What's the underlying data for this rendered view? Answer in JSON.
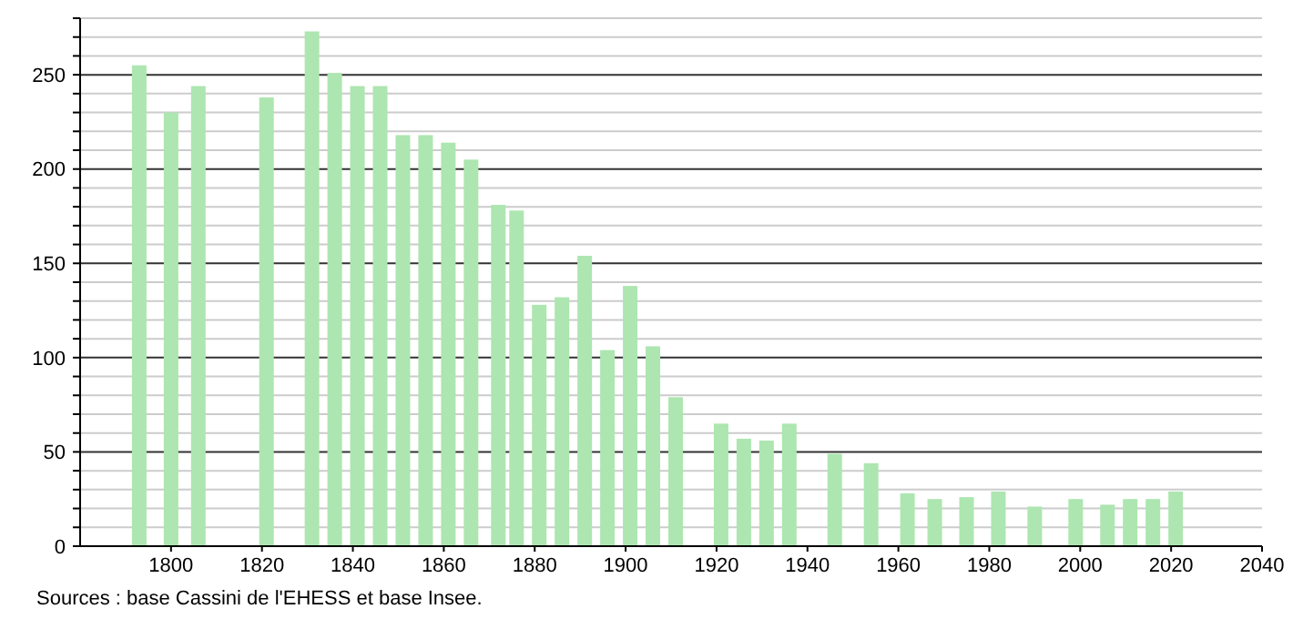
{
  "chart_data": {
    "type": "bar",
    "x": [
      1793,
      1800,
      1806,
      1821,
      1831,
      1836,
      1841,
      1846,
      1851,
      1856,
      1861,
      1866,
      1872,
      1876,
      1881,
      1886,
      1891,
      1896,
      1901,
      1906,
      1911,
      1921,
      1926,
      1931,
      1936,
      1946,
      1954,
      1962,
      1968,
      1975,
      1982,
      1990,
      1999,
      2006,
      2011,
      2016,
      2021
    ],
    "values": [
      255,
      230,
      244,
      238,
      273,
      251,
      244,
      244,
      218,
      218,
      214,
      205,
      181,
      178,
      128,
      132,
      154,
      104,
      138,
      106,
      79,
      65,
      57,
      56,
      65,
      49,
      44,
      28,
      25,
      26,
      29,
      21,
      25,
      22,
      25,
      25,
      29
    ],
    "color": "#ade6b0",
    "xlim": [
      1780,
      2040
    ],
    "xticks": [
      1800,
      1820,
      1840,
      1860,
      1880,
      1900,
      1920,
      1940,
      1960,
      1980,
      2000,
      2020,
      2040
    ],
    "ylim": [
      0,
      280
    ],
    "yticks": [
      0,
      {
        "value": 10,
        "label": null
      },
      {
        "value": 20,
        "label": null
      },
      {
        "value": 30,
        "label": null
      },
      {
        "value": 40,
        "label": null
      },
      50,
      {
        "value": 60,
        "label": null
      },
      {
        "value": 70,
        "label": null
      },
      {
        "value": 80,
        "label": null
      },
      {
        "value": 90,
        "label": null
      },
      100,
      {
        "value": 110,
        "label": null
      },
      {
        "value": 120,
        "label": null
      },
      {
        "value": 130,
        "label": null
      },
      {
        "value": 140,
        "label": null
      },
      150,
      {
        "value": 160,
        "label": null
      },
      {
        "value": 170,
        "label": null
      },
      {
        "value": 180,
        "label": null
      },
      {
        "value": 190,
        "label": null
      },
      200,
      {
        "value": 210,
        "label": null
      },
      {
        "value": 220,
        "label": null
      },
      {
        "value": 230,
        "label": null
      },
      {
        "value": 240,
        "label": null
      },
      250,
      {
        "value": 260,
        "label": null
      },
      {
        "value": 270,
        "label": null
      },
      {
        "value": 280,
        "label": null
      }
    ],
    "grid": "y",
    "annotations": [
      "Sources : base Cassini de l'EHESS et base Insee."
    ]
  }
}
